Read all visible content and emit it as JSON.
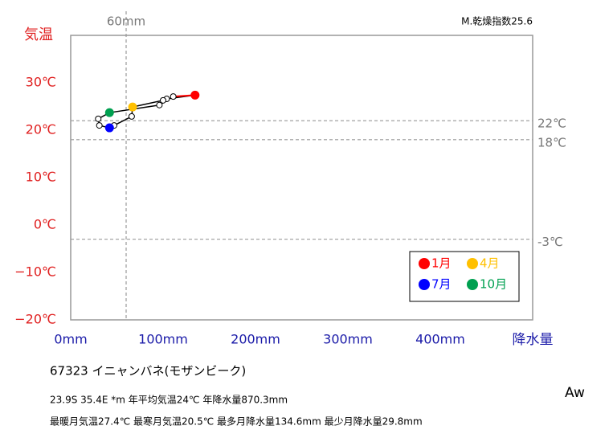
{
  "chart_data": {
    "type": "climograph",
    "title": "67323  イニャンバネ(モザンビーク)",
    "info_lines": [
      "23.9S  35.4E *m  年平均気温24℃ 年降水量870.3mm",
      "最暖月気温27.4℃ 最寒月気温20.5℃ 最多月降水量134.6mm 最少月降水量29.8mm"
    ],
    "climate_class": "Aw",
    "dryness_index": "M.乾燥指数25.6",
    "x_label": "降水量",
    "y_label": "気温",
    "xlim": [
      0,
      500
    ],
    "ylim": [
      -20,
      40
    ],
    "xticks": [
      {
        "value": 0,
        "label": "0mm"
      },
      {
        "value": 100,
        "label": "100mm"
      },
      {
        "value": 200,
        "label": "200mm"
      },
      {
        "value": 300,
        "label": "300mm"
      },
      {
        "value": 400,
        "label": "400mm"
      }
    ],
    "yticks": [
      {
        "value": -20,
        "label": "−20℃"
      },
      {
        "value": -10,
        "label": "−10℃"
      },
      {
        "value": 0,
        "label": "0℃"
      },
      {
        "value": 10,
        "label": "10℃"
      },
      {
        "value": 20,
        "label": "20℃"
      },
      {
        "value": 30,
        "label": "30℃"
      }
    ],
    "ref_y": [
      {
        "value": 22,
        "label": "22℃"
      },
      {
        "value": 18,
        "label": "18℃"
      },
      {
        "value": -3,
        "label": "-3℃"
      }
    ],
    "ref_x": [
      {
        "value": 60,
        "label": "60mm"
      }
    ],
    "x": [
      134.6,
      103.9,
      100,
      67,
      66,
      47,
      42,
      31,
      29.8,
      42,
      96,
      111
    ],
    "y": [
      27.4,
      26.6,
      26.3,
      24.9,
      22.9,
      21.0,
      20.5,
      21.0,
      22.4,
      23.7,
      25.3,
      27.1
    ],
    "line_color": "#000000",
    "closing_color": "#ff0000",
    "point_colors": [
      "#ff0000",
      null,
      null,
      "#ffc000",
      null,
      null,
      "#0000ff",
      null,
      null,
      "#00a050",
      null,
      null
    ],
    "legend": [
      {
        "name": "1月",
        "color": "#ff0000"
      },
      {
        "name": "4月",
        "color": "#ffc000"
      },
      {
        "name": "7月",
        "color": "#0000ff"
      },
      {
        "name": "10月",
        "color": "#00a050"
      }
    ]
  }
}
